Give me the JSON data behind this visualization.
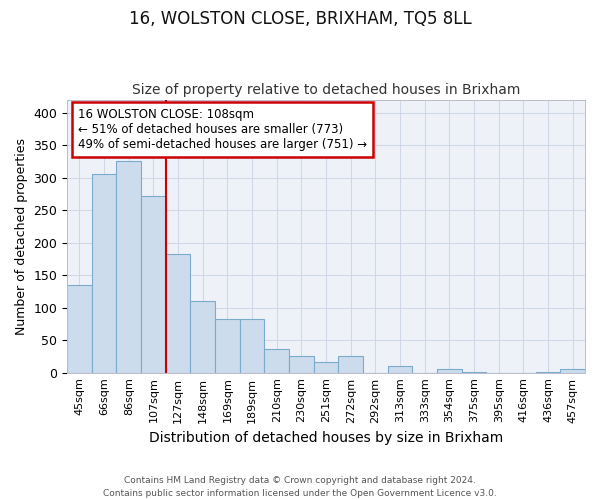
{
  "title": "16, WOLSTON CLOSE, BRIXHAM, TQ5 8LL",
  "subtitle": "Size of property relative to detached houses in Brixham",
  "xlabel": "Distribution of detached houses by size in Brixham",
  "ylabel": "Number of detached properties",
  "footnote": "Contains HM Land Registry data © Crown copyright and database right 2024.\nContains public sector information licensed under the Open Government Licence v3.0.",
  "bins": [
    "45sqm",
    "66sqm",
    "86sqm",
    "107sqm",
    "127sqm",
    "148sqm",
    "169sqm",
    "189sqm",
    "210sqm",
    "230sqm",
    "251sqm",
    "272sqm",
    "292sqm",
    "313sqm",
    "333sqm",
    "354sqm",
    "375sqm",
    "395sqm",
    "416sqm",
    "436sqm",
    "457sqm"
  ],
  "values": [
    135,
    305,
    325,
    272,
    182,
    110,
    83,
    83,
    37,
    25,
    17,
    25,
    0,
    10,
    0,
    5,
    1,
    0,
    0,
    1,
    5
  ],
  "bar_color": "#ccdcec",
  "bar_edge_color": "#7aabcc",
  "vline_color": "#cc0000",
  "annotation_text": "16 WOLSTON CLOSE: 108sqm\n← 51% of detached houses are smaller (773)\n49% of semi-detached houses are larger (751) →",
  "annotation_box_color": "#ffffff",
  "annotation_box_edge": "#cc0000",
  "ylim": [
    0,
    420
  ],
  "yticks": [
    0,
    50,
    100,
    150,
    200,
    250,
    300,
    350,
    400
  ],
  "bg_color": "#eef2f8",
  "grid_color": "#d0d8e8",
  "title_fontsize": 12,
  "subtitle_fontsize": 10,
  "ylabel_fontsize": 9,
  "xlabel_fontsize": 10
}
